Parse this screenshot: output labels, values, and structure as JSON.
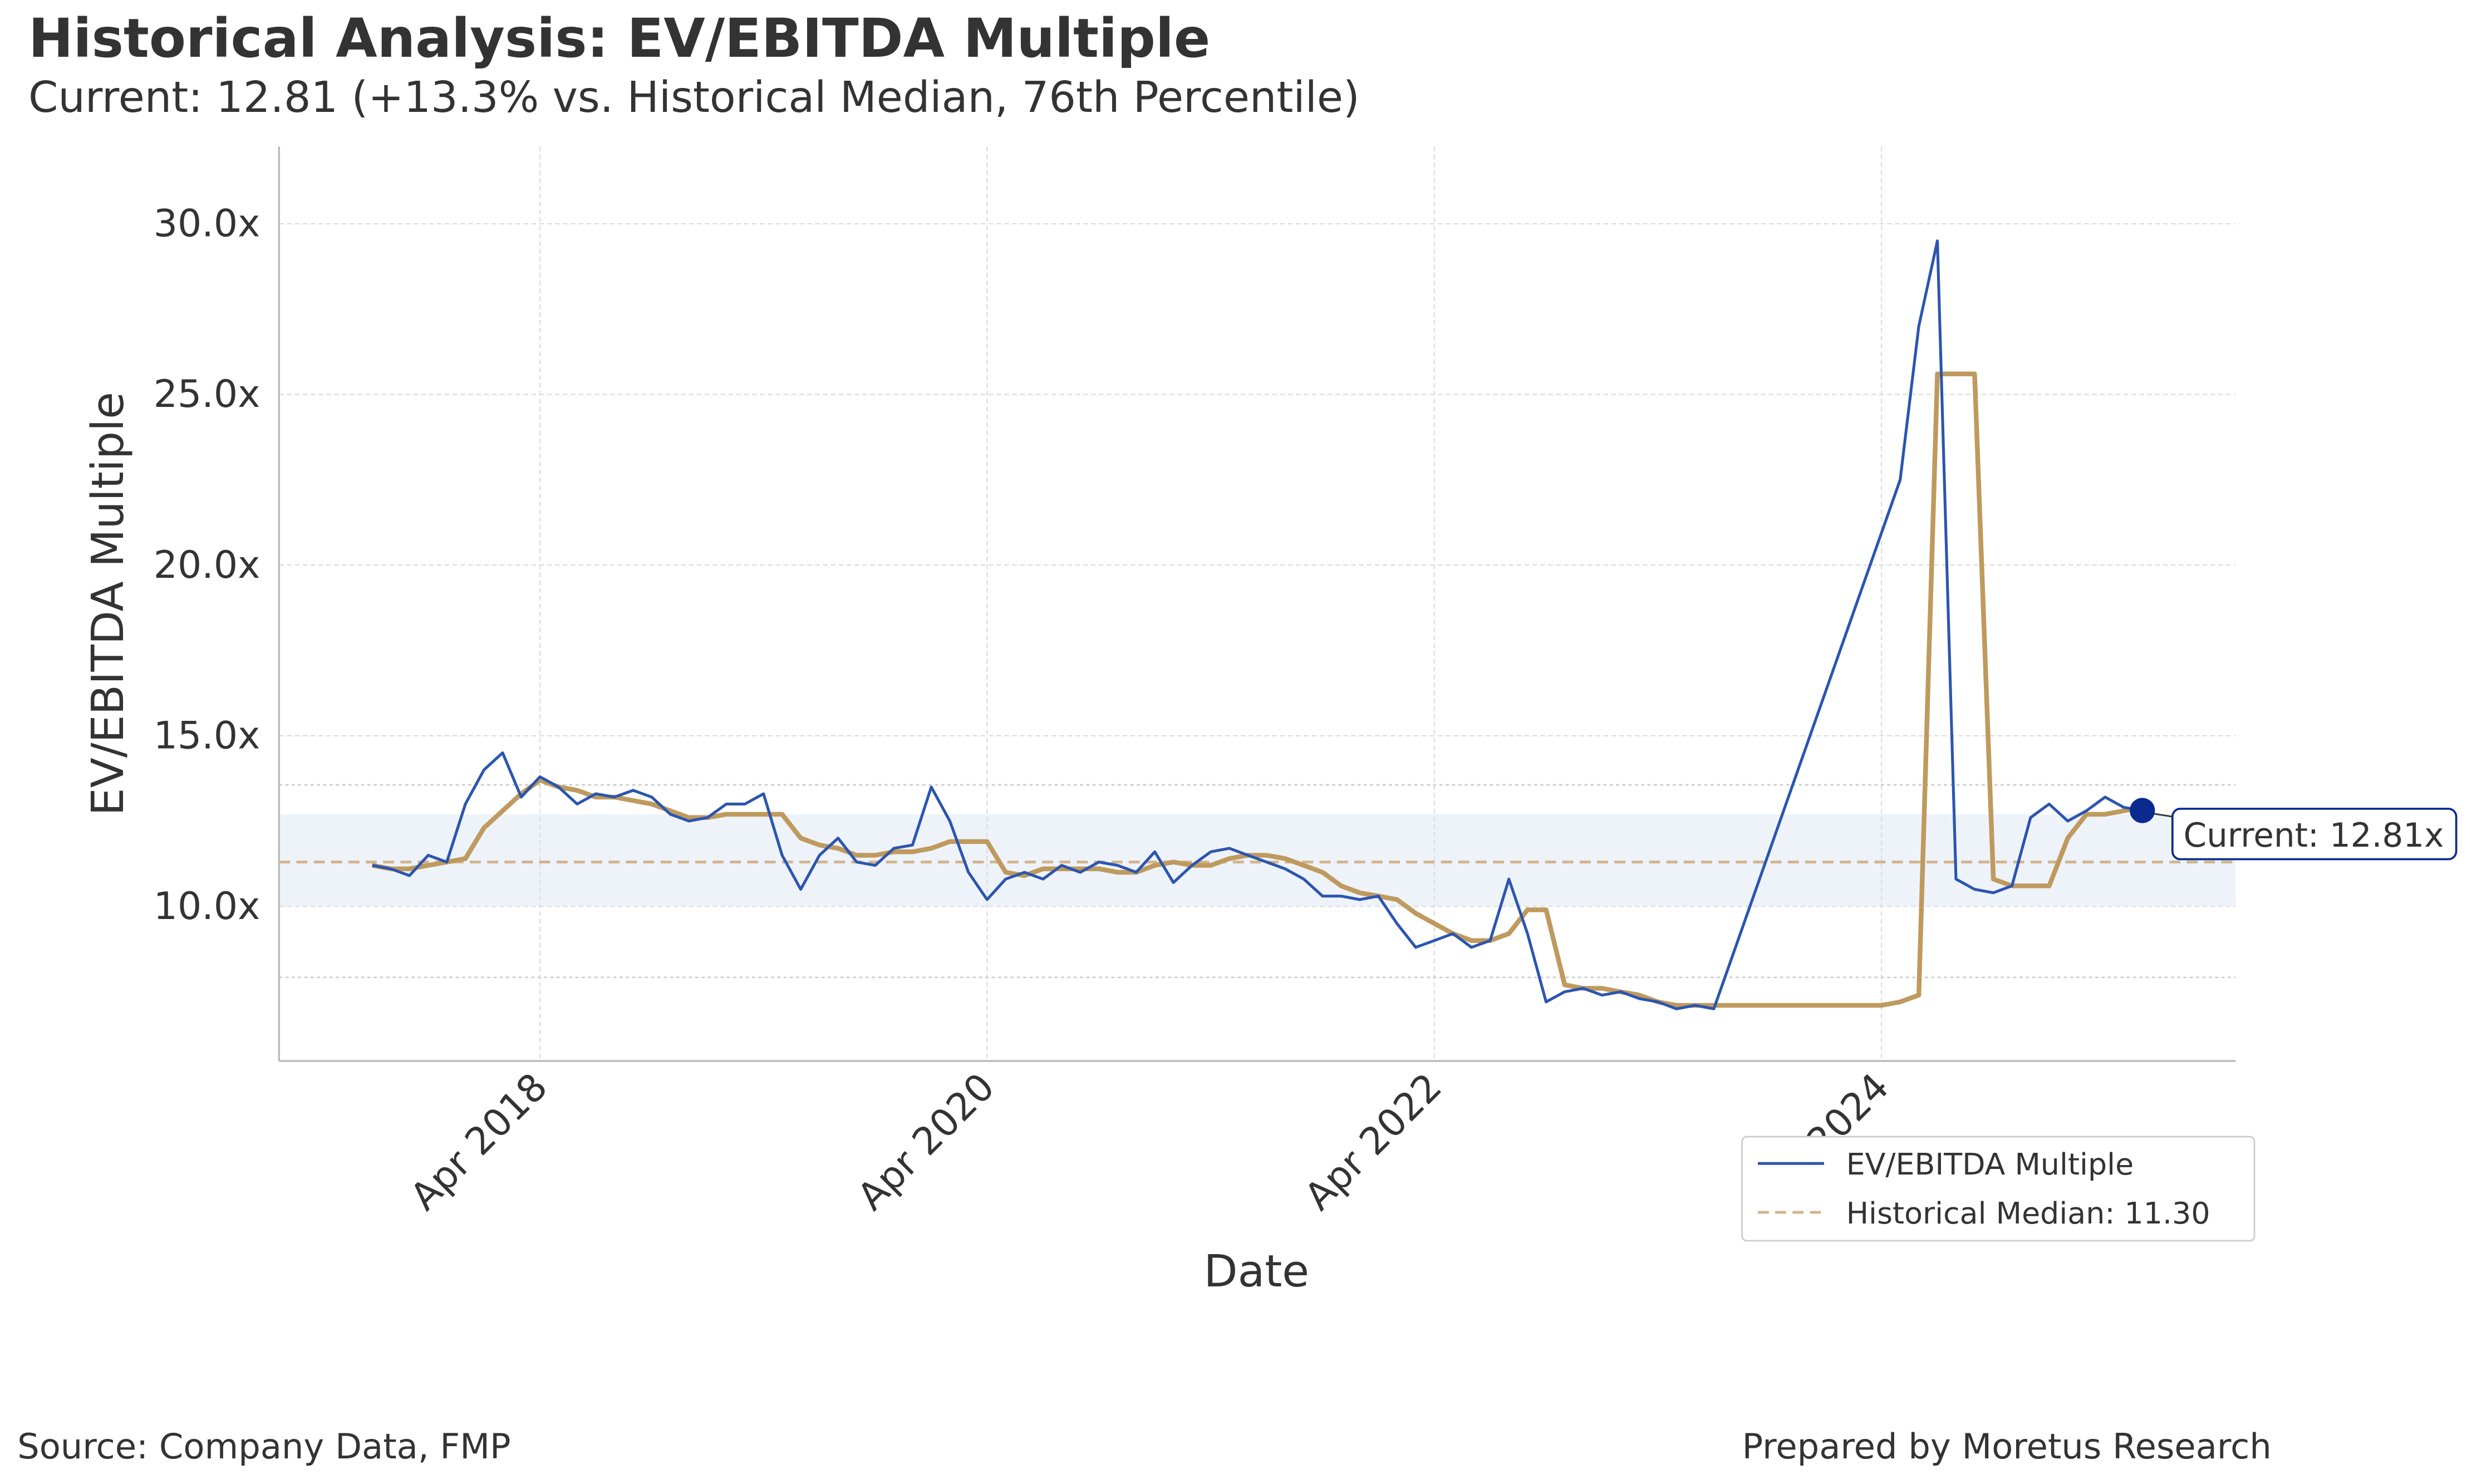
{
  "chart_data": {
    "type": "line",
    "title": "Historical Analysis: EV/EBITDA Multiple",
    "subtitle": "Current: 12.81 (+13.3% vs. Historical Median, 76th Percentile)",
    "x_label": "Date",
    "y_label": "EV/EBITDA Multiple",
    "xlim": [
      "2017-02",
      "2025-11"
    ],
    "xticks": [
      {
        "value": "2018-04",
        "label": "Apr 2018"
      },
      {
        "value": "2020-04",
        "label": "Apr 2020"
      },
      {
        "value": "2022-04",
        "label": "Apr 2022"
      },
      {
        "value": "2024-04",
        "label": "Apr 2024"
      }
    ],
    "ylim": [
      5.47,
      32.26
    ],
    "yticks": [
      {
        "value": 10,
        "label": "10.0x"
      },
      {
        "value": 15,
        "label": "15.0x"
      },
      {
        "value": 20,
        "label": "20.0x"
      },
      {
        "value": 25,
        "label": "25.0x"
      },
      {
        "value": 30,
        "label": "30.0x"
      }
    ],
    "grid": true,
    "band": [
      10.0,
      12.7
    ],
    "band_color": "#eef3fa",
    "dotted_lines": [
      13.56,
      7.92
    ],
    "series": [
      {
        "name": "EV/EBITDA Multiple",
        "color": "#2b55b0",
        "x": [
          "2017-07",
          "2017-08",
          "2017-09",
          "2017-10",
          "2017-11",
          "2017-12",
          "2018-01",
          "2018-02",
          "2018-03",
          "2018-04",
          "2018-05",
          "2018-06",
          "2018-07",
          "2018-08",
          "2018-09",
          "2018-10",
          "2018-11",
          "2018-12",
          "2019-01",
          "2019-02",
          "2019-03",
          "2019-04",
          "2019-05",
          "2019-06",
          "2019-07",
          "2019-08",
          "2019-09",
          "2019-10",
          "2019-11",
          "2019-12",
          "2020-01",
          "2020-02",
          "2020-03",
          "2020-04",
          "2020-05",
          "2020-06",
          "2020-07",
          "2020-08",
          "2020-09",
          "2020-10",
          "2020-11",
          "2020-12",
          "2021-01",
          "2021-02",
          "2021-03",
          "2021-04",
          "2021-05",
          "2021-06",
          "2021-07",
          "2021-08",
          "2021-09",
          "2021-10",
          "2021-11",
          "2021-12",
          "2022-01",
          "2022-02",
          "2022-03",
          "2022-04",
          "2022-05",
          "2022-06",
          "2022-07",
          "2022-08",
          "2022-09",
          "2022-10",
          "2022-11",
          "2022-12",
          "2023-01",
          "2023-02",
          "2023-03",
          "2023-04",
          "2023-05",
          "2023-06",
          "2023-07",
          "2024-05",
          "2024-06",
          "2024-07",
          "2024-08",
          "2024-09",
          "2024-10",
          "2024-11",
          "2024-12",
          "2025-01",
          "2025-02",
          "2025-03",
          "2025-04",
          "2025-05",
          "2025-06"
        ],
        "values": [
          11.2,
          11.1,
          10.9,
          11.5,
          11.3,
          13.0,
          14.0,
          14.5,
          13.2,
          13.8,
          13.5,
          13.0,
          13.3,
          13.2,
          13.4,
          13.2,
          12.7,
          12.5,
          12.6,
          13.0,
          13.0,
          13.3,
          11.5,
          10.5,
          11.5,
          12.0,
          11.3,
          11.2,
          11.7,
          11.8,
          13.5,
          12.5,
          11.0,
          10.2,
          10.8,
          11.0,
          10.8,
          11.2,
          11.0,
          11.3,
          11.2,
          11.0,
          11.6,
          10.7,
          11.2,
          11.6,
          11.7,
          11.5,
          11.3,
          11.1,
          10.8,
          10.3,
          10.3,
          10.2,
          10.3,
          9.5,
          8.8,
          9.0,
          9.2,
          8.8,
          9.0,
          10.8,
          9.2,
          7.2,
          7.5,
          7.6,
          7.4,
          7.5,
          7.3,
          7.2,
          7.0,
          7.1,
          7.0,
          22.5,
          27.0,
          29.5,
          10.8,
          10.5,
          10.4,
          10.6,
          12.6,
          13.0,
          12.5,
          12.8,
          13.2,
          12.9,
          12.81
        ]
      },
      {
        "color": "#bf9a5e",
        "x": [
          "2017-07",
          "2017-08",
          "2017-09",
          "2017-10",
          "2017-11",
          "2017-12",
          "2018-01",
          "2018-02",
          "2018-03",
          "2018-04",
          "2018-05",
          "2018-06",
          "2018-07",
          "2018-08",
          "2018-09",
          "2018-10",
          "2018-11",
          "2018-12",
          "2019-01",
          "2019-02",
          "2019-03",
          "2019-04",
          "2019-05",
          "2019-06",
          "2019-07",
          "2019-08",
          "2019-09",
          "2019-10",
          "2019-11",
          "2019-12",
          "2020-01",
          "2020-02",
          "2020-03",
          "2020-04",
          "2020-05",
          "2020-06",
          "2020-07",
          "2020-08",
          "2020-09",
          "2020-10",
          "2020-11",
          "2020-12",
          "2021-01",
          "2021-02",
          "2021-03",
          "2021-04",
          "2021-05",
          "2021-06",
          "2021-07",
          "2021-08",
          "2021-09",
          "2021-10",
          "2021-11",
          "2021-12",
          "2022-01",
          "2022-02",
          "2022-03",
          "2022-04",
          "2022-05",
          "2022-06",
          "2022-07",
          "2022-08",
          "2022-09",
          "2022-10",
          "2022-11",
          "2022-12",
          "2023-01",
          "2023-02",
          "2023-03",
          "2023-04",
          "2023-05",
          "2023-06",
          "2023-07",
          "2023-08",
          "2023-09",
          "2023-10",
          "2023-11",
          "2023-12",
          "2024-01",
          "2024-02",
          "2024-03",
          "2024-04",
          "2024-05",
          "2024-06",
          "2024-07",
          "2024-08",
          "2024-09",
          "2024-10",
          "2024-11",
          "2024-12",
          "2025-01",
          "2025-02",
          "2025-03",
          "2025-04",
          "2025-05",
          "2025-06"
        ],
        "values": [
          11.2,
          11.1,
          11.1,
          11.2,
          11.3,
          11.4,
          12.3,
          12.8,
          13.3,
          13.7,
          13.5,
          13.4,
          13.2,
          13.2,
          13.1,
          13.0,
          12.8,
          12.6,
          12.6,
          12.7,
          12.7,
          12.7,
          12.7,
          12.0,
          11.8,
          11.7,
          11.5,
          11.5,
          11.6,
          11.6,
          11.7,
          11.9,
          11.9,
          11.9,
          11.0,
          10.9,
          11.1,
          11.1,
          11.1,
          11.1,
          11.0,
          11.0,
          11.2,
          11.3,
          11.2,
          11.2,
          11.4,
          11.5,
          11.5,
          11.4,
          11.2,
          11.0,
          10.6,
          10.4,
          10.3,
          10.2,
          9.8,
          9.5,
          9.2,
          9.0,
          9.0,
          9.2,
          9.9,
          9.9,
          7.7,
          7.6,
          7.6,
          7.5,
          7.4,
          7.2,
          7.1,
          7.1,
          7.1,
          7.1,
          7.1,
          7.1,
          7.1,
          7.1,
          7.1,
          7.1,
          7.1,
          7.1,
          7.2,
          7.4,
          25.6,
          25.6,
          25.6,
          10.8,
          10.6,
          10.6,
          10.6,
          12.0,
          12.7,
          12.7,
          12.8,
          12.9
        ]
      }
    ],
    "median": {
      "value": 11.3,
      "label": "Historical Median: 11.30",
      "color": "#d2b48c"
    },
    "current": {
      "x": "2025-06",
      "value": 12.81,
      "label": "Current: 12.81x",
      "color": "#0b2a8f"
    },
    "legend_loc": "lower right",
    "source": "Source: Company Data, FMP",
    "credit": "Prepared by Moretus Research"
  }
}
